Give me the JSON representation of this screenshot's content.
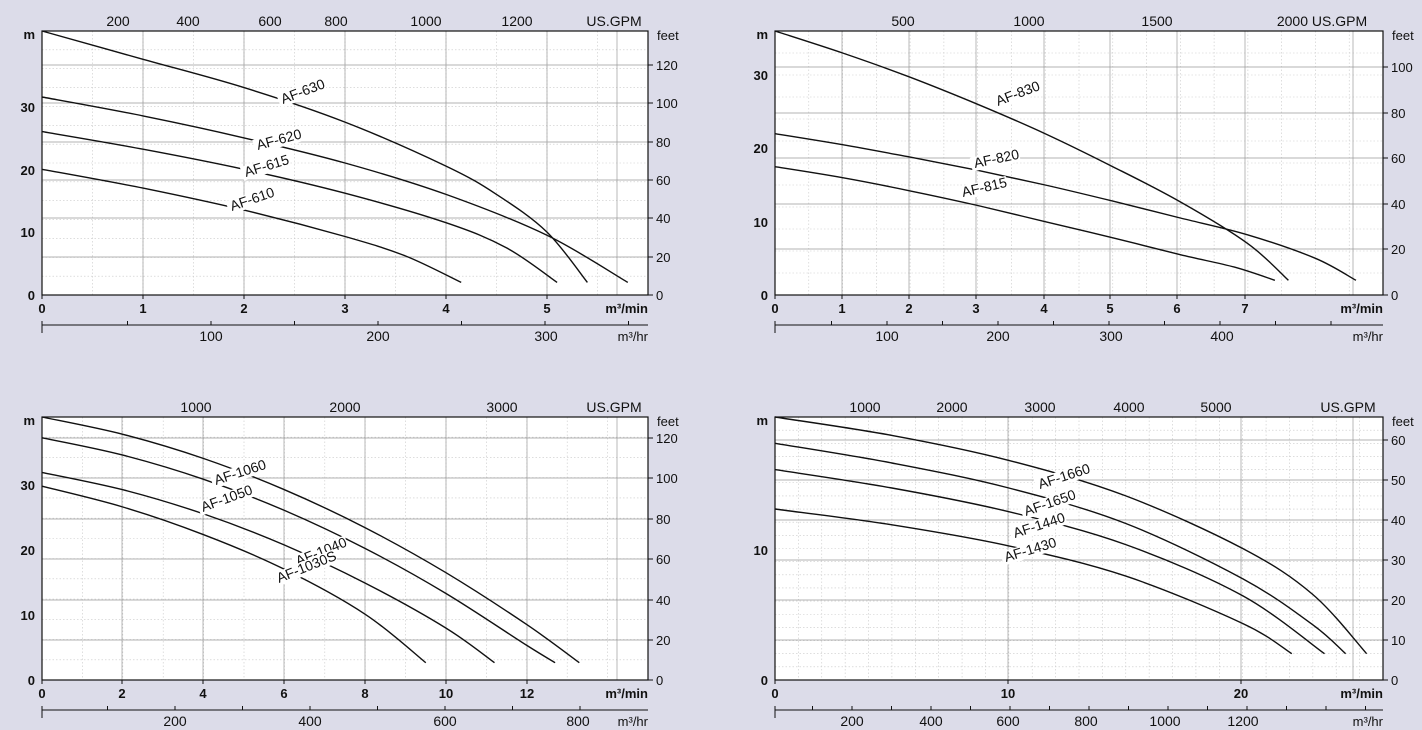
{
  "chart_data": [
    {
      "type": "line",
      "xlabel": "m³/min",
      "x2label": "m³/hr",
      "x3label": "US.GPM",
      "ylabel": "m",
      "y2label": "feet",
      "xlim": [
        0,
        6
      ],
      "ylim": [
        0,
        42
      ],
      "xticks": [
        "0",
        "1",
        "2",
        "3",
        "4",
        "5",
        "m³/min"
      ],
      "yticks": [
        "0",
        "10",
        "20",
        "30",
        "m"
      ],
      "hr_ticks": [
        "100",
        "200",
        "300"
      ],
      "gpm_ticks": [
        "200",
        "400",
        "600",
        "800",
        "1000",
        "1200"
      ],
      "feet_ticks": [
        "0",
        "20",
        "40",
        "60",
        "80",
        "100",
        "120"
      ],
      "series": [
        {
          "name": "AF-630",
          "x": [
            0,
            1,
            2,
            3,
            4,
            4.5,
            5,
            5.4
          ],
          "y": [
            42,
            37.5,
            33,
            27.5,
            20.5,
            16,
            10,
            2
          ]
        },
        {
          "name": "AF-620",
          "x": [
            0,
            1,
            2,
            3,
            4,
            5,
            5.8
          ],
          "y": [
            31.5,
            28.5,
            25,
            21,
            16,
            9.5,
            2
          ]
        },
        {
          "name": "AF-615",
          "x": [
            0,
            1,
            2,
            3,
            4,
            4.6,
            5.1
          ],
          "y": [
            26,
            23.2,
            20,
            16.2,
            11.5,
            7.5,
            2
          ]
        },
        {
          "name": "AF-610",
          "x": [
            0,
            1,
            2,
            3,
            3.6,
            4.15
          ],
          "y": [
            20,
            17,
            13.5,
            9.3,
            6.2,
            2
          ]
        }
      ]
    },
    {
      "type": "line",
      "xlabel": "m³/min",
      "x2label": "m³/hr",
      "x3label": "US.GPM",
      "ylabel": "m",
      "y2label": "feet",
      "xlim": [
        0,
        9
      ],
      "ylim": [
        0,
        36
      ],
      "xticks": [
        "0",
        "1",
        "2",
        "3",
        "4",
        "5",
        "6",
        "7",
        "m³/min"
      ],
      "yticks": [
        "0",
        "10",
        "20",
        "30",
        "m"
      ],
      "hr_ticks": [
        "100",
        "200",
        "300",
        "400"
      ],
      "gpm_ticks": [
        "500",
        "1000",
        "1500",
        "2000 US.GPM"
      ],
      "feet_ticks": [
        "0",
        "20",
        "40",
        "60",
        "80",
        "100"
      ],
      "series": [
        {
          "name": "AF-830",
          "x": [
            0,
            1,
            2,
            3,
            4,
            5,
            6,
            7,
            7.6
          ],
          "y": [
            36,
            33,
            29.7,
            26,
            22,
            17.5,
            12.7,
            7,
            2
          ]
        },
        {
          "name": "AF-820",
          "x": [
            0,
            1,
            2,
            3,
            4,
            5,
            6,
            7,
            8,
            8.6
          ],
          "y": [
            22,
            20.5,
            18.8,
            17,
            15,
            12.8,
            10.5,
            8.2,
            5,
            2
          ]
        },
        {
          "name": "AF-815",
          "x": [
            0,
            1,
            2,
            3,
            4,
            5,
            6,
            6.8,
            7.4
          ],
          "y": [
            17.5,
            16,
            14.2,
            12.2,
            10,
            7.8,
            5.5,
            3.8,
            2
          ]
        }
      ]
    },
    {
      "type": "line",
      "xlabel": "m³/min",
      "x2label": "m³/hr",
      "x3label": "US.GPM",
      "ylabel": "m",
      "y2label": "feet",
      "xlim": [
        0,
        15
      ],
      "ylim": [
        0,
        38
      ],
      "xticks": [
        "0",
        "2",
        "4",
        "6",
        "8",
        "10",
        "12",
        "m³/min"
      ],
      "yticks": [
        "0",
        "10",
        "20",
        "30",
        "m"
      ],
      "hr_ticks": [
        "200",
        "400",
        "600",
        "800"
      ],
      "gpm_ticks": [
        "1000",
        "2000",
        "3000",
        "US.GPM"
      ],
      "feet_ticks": [
        "0",
        "20",
        "40",
        "60",
        "80",
        "100",
        "120"
      ],
      "series": [
        {
          "name": "AF-1060",
          "x": [
            0,
            2,
            4,
            6,
            8,
            10,
            12,
            13.3
          ],
          "y": [
            38,
            35.5,
            32,
            27.5,
            22,
            15.5,
            8,
            2.5
          ]
        },
        {
          "name": "AF-1050",
          "x": [
            0,
            2,
            4,
            6,
            8,
            10,
            12,
            12.7
          ],
          "y": [
            35,
            32.5,
            29,
            24.5,
            19,
            12.5,
            5,
            2.5
          ]
        },
        {
          "name": "AF-1040",
          "x": [
            0,
            2,
            4,
            6,
            8,
            10,
            11.2
          ],
          "y": [
            30,
            27.5,
            24,
            19.5,
            14,
            7.5,
            2.5
          ]
        },
        {
          "name": "AF-1030S",
          "x": [
            0,
            2,
            4,
            6,
            8,
            9.5
          ],
          "y": [
            28,
            25,
            21,
            16,
            9.5,
            2.5
          ]
        }
      ]
    },
    {
      "type": "line",
      "xlabel": "m³/min",
      "x2label": "m³/hr",
      "x3label": "US.GPM",
      "ylabel": "m",
      "y2label": "feet",
      "xlim": [
        0,
        26
      ],
      "ylim": [
        0,
        20
      ],
      "xticks": [
        "0",
        "10",
        "20",
        "m³/min"
      ],
      "yticks": [
        "0",
        "10",
        "m"
      ],
      "hr_ticks": [
        "200",
        "400",
        "600",
        "800",
        "1000",
        "1200"
      ],
      "gpm_ticks": [
        "1000",
        "2000",
        "3000",
        "4000",
        "5000",
        "US.GPM"
      ],
      "feet_ticks": [
        "0",
        "10",
        "20",
        "30",
        "40",
        "50",
        "60"
      ],
      "series": [
        {
          "name": "AF-1660",
          "x": [
            0,
            5,
            10,
            15,
            20,
            23,
            25.3
          ],
          "y": [
            20,
            18.6,
            16.7,
            14,
            10,
            6.5,
            2
          ]
        },
        {
          "name": "AF-1650",
          "x": [
            0,
            5,
            10,
            15,
            20,
            23,
            24.4
          ],
          "y": [
            18,
            16.5,
            14.6,
            11.9,
            7.7,
            4.2,
            2
          ]
        },
        {
          "name": "AF-1440",
          "x": [
            0,
            5,
            10,
            15,
            20,
            23.5
          ],
          "y": [
            16,
            14.6,
            12.8,
            10.3,
            6.4,
            2
          ]
        },
        {
          "name": "AF-1430",
          "x": [
            0,
            5,
            10,
            15,
            20,
            22.1
          ],
          "y": [
            13,
            11.8,
            10.2,
            7.9,
            4.3,
            2
          ]
        }
      ]
    }
  ]
}
